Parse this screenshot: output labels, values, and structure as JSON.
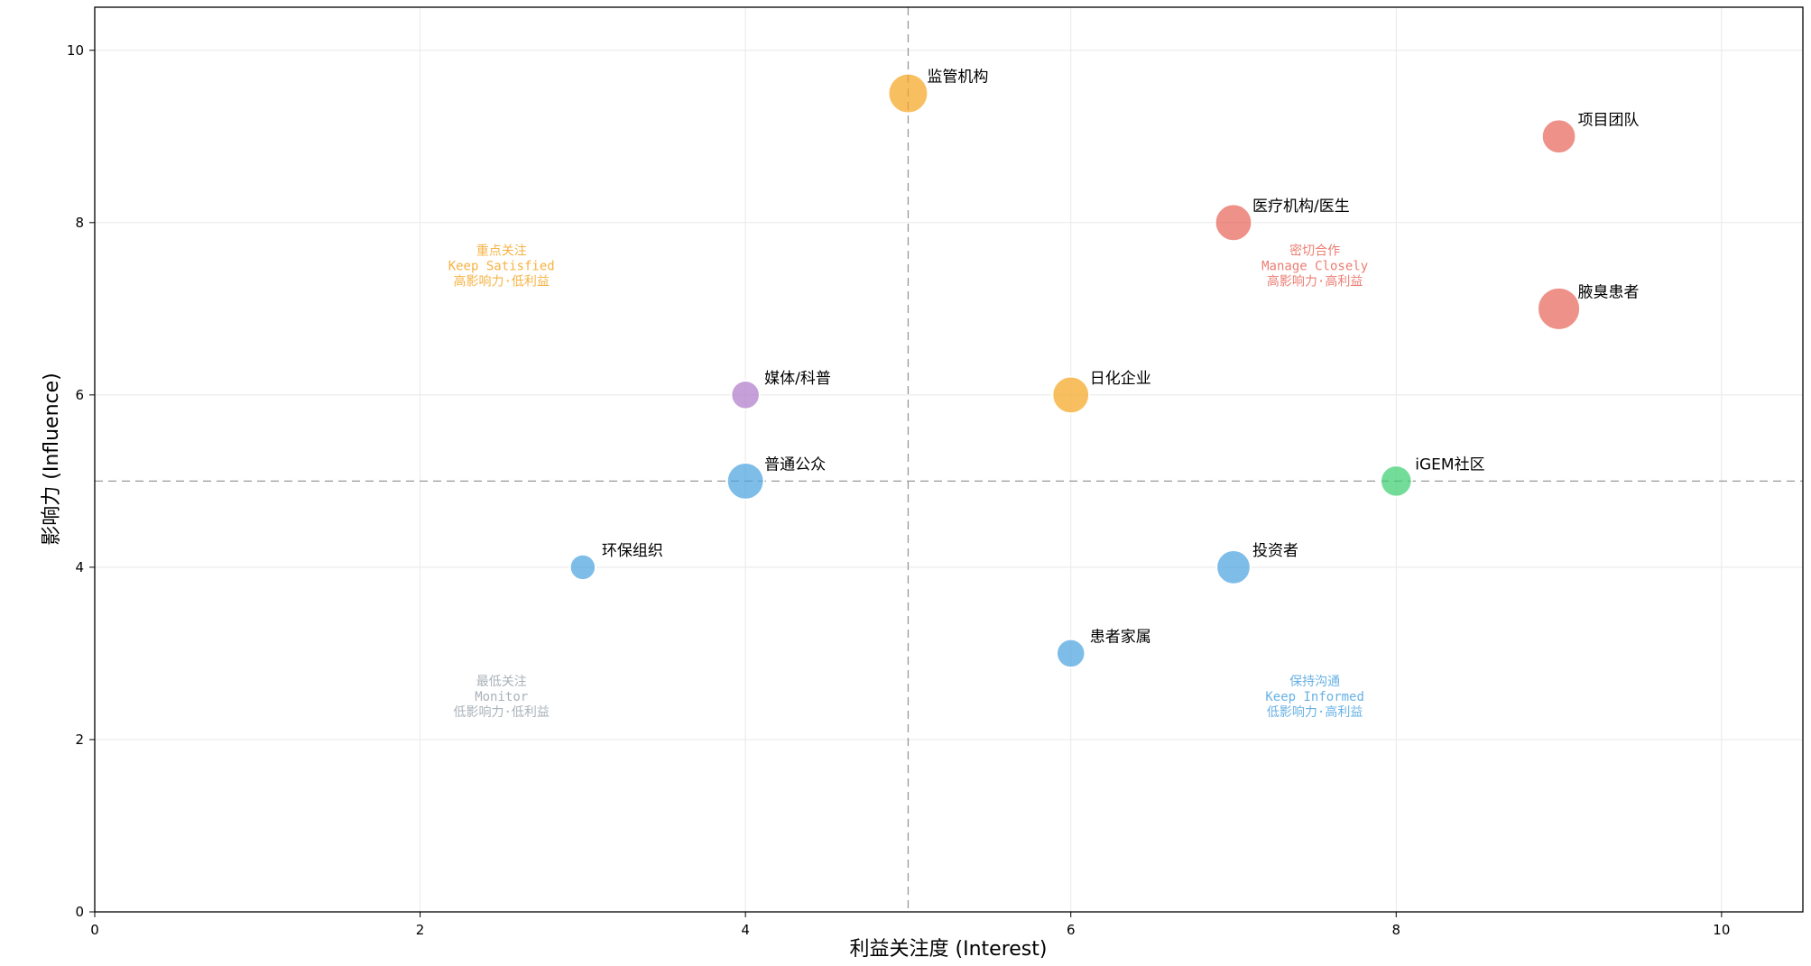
{
  "chart_data": {
    "type": "scatter",
    "title": "",
    "xlabel": "利益关注度 (Interest)",
    "ylabel": "影响力 (Influence)",
    "xlim": [
      0,
      10.5
    ],
    "ylim": [
      0,
      10.5
    ],
    "xticks": [
      0,
      2,
      4,
      6,
      8,
      10
    ],
    "yticks": [
      0,
      2,
      4,
      6,
      8,
      10
    ],
    "grid": true,
    "divider_x": 5,
    "divider_y": 5,
    "points": [
      {
        "label": "监管机构",
        "x": 5,
        "y": 9.5,
        "size": 9,
        "color": "#f5a623"
      },
      {
        "label": "项目团队",
        "x": 9,
        "y": 9,
        "size": 7,
        "color": "#e8675b"
      },
      {
        "label": "医疗机构/医生",
        "x": 7,
        "y": 8,
        "size": 8,
        "color": "#e8675b"
      },
      {
        "label": "腋臭患者",
        "x": 9,
        "y": 7,
        "size": 10,
        "color": "#e8675b"
      },
      {
        "label": "媒体/科普",
        "x": 4,
        "y": 6,
        "size": 5,
        "color": "#b07cc9"
      },
      {
        "label": "日化企业",
        "x": 6,
        "y": 6,
        "size": 8,
        "color": "#f5a623"
      },
      {
        "label": "普通公众",
        "x": 4,
        "y": 5,
        "size": 8,
        "color": "#4ea3e0"
      },
      {
        "label": "iGEM社区",
        "x": 8,
        "y": 5,
        "size": 6,
        "color": "#3ecf72"
      },
      {
        "label": "环保组织",
        "x": 3,
        "y": 4,
        "size": 4,
        "color": "#4ea3e0"
      },
      {
        "label": "投资者",
        "x": 7,
        "y": 4,
        "size": 7,
        "color": "#4ea3e0"
      },
      {
        "label": "患者家属",
        "x": 6,
        "y": 3,
        "size": 5,
        "color": "#4ea3e0"
      }
    ],
    "quadrants": [
      {
        "x": 2.5,
        "y": 7.5,
        "color": "#f5a623",
        "lines": [
          "重点关注",
          "Keep Satisfied",
          "高影响力·低利益"
        ]
      },
      {
        "x": 7.5,
        "y": 7.5,
        "color": "#e8675b",
        "lines": [
          "密切合作",
          "Manage Closely",
          "高影响力·高利益"
        ]
      },
      {
        "x": 2.5,
        "y": 2.5,
        "color": "#9aa4ad",
        "lines": [
          "最低关注",
          "Monitor",
          "低影响力·低利益"
        ]
      },
      {
        "x": 7.5,
        "y": 2.5,
        "color": "#4ea3e0",
        "lines": [
          "保持沟通",
          "Keep Informed",
          "低影响力·高利益"
        ]
      }
    ]
  }
}
